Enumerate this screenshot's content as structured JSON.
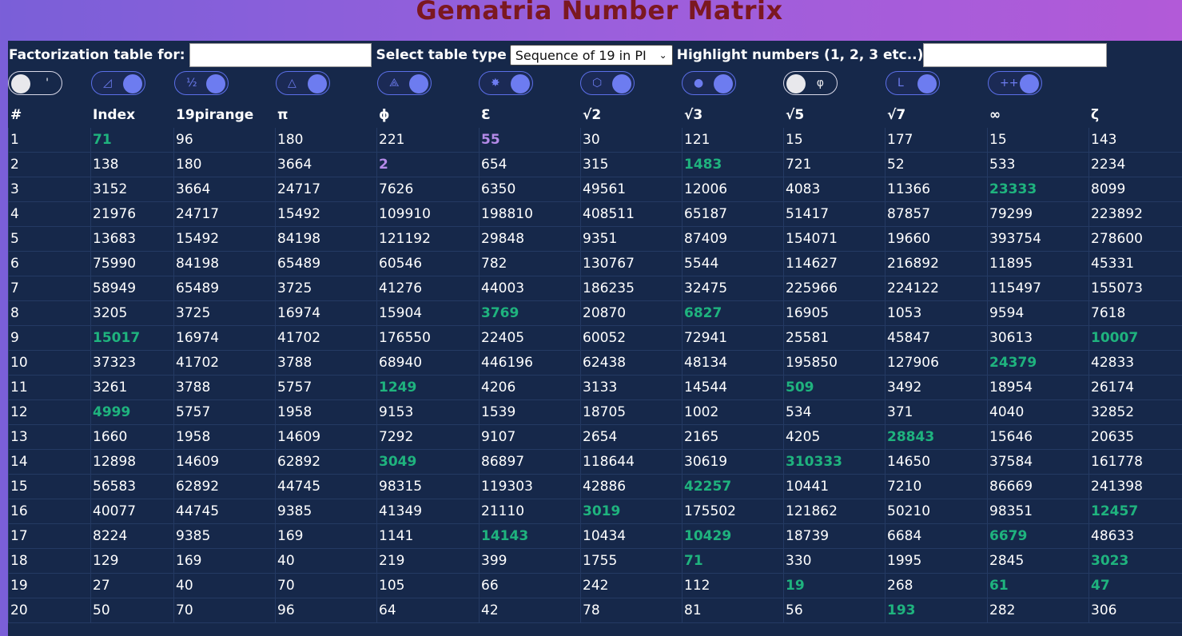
{
  "title": "Gematria Number Matrix",
  "controls": {
    "factor_label": "Factorization table for:",
    "factor_value": "",
    "type_label": "Select table type",
    "type_selected": "Sequence of 19 in PI",
    "highlight_label": "Highlight numbers (1, 2, 3 etc..)",
    "highlight_value": ""
  },
  "toggles": [
    {
      "glyph": "'",
      "state": "off",
      "icon": "apostrophe-icon"
    },
    {
      "glyph": "◿",
      "state": "on",
      "icon": "right-triangle-icon"
    },
    {
      "glyph": "½",
      "state": "on",
      "icon": "half-icon"
    },
    {
      "glyph": "△",
      "state": "on",
      "icon": "triangle-icon"
    },
    {
      "glyph": "⟁",
      "state": "on",
      "icon": "star-triangle-icon"
    },
    {
      "glyph": "✸",
      "state": "on",
      "icon": "star-icon"
    },
    {
      "glyph": "⬡",
      "state": "on",
      "icon": "hexagon-icon"
    },
    {
      "glyph": "●",
      "state": "on",
      "icon": "circle-icon"
    },
    {
      "glyph": "φ",
      "state": "off",
      "icon": "phi-icon"
    },
    {
      "glyph": "L",
      "state": "on",
      "icon": "letter-l-icon"
    },
    {
      "glyph": "+++",
      "state": "on",
      "icon": "plus-icon"
    }
  ],
  "colors": {
    "highlight_green": "#1fb37e",
    "highlight_purple": "#b48ae8"
  },
  "table": {
    "headers": [
      "#",
      "Index",
      "19pirange",
      "π",
      "ϕ",
      "Ɛ",
      "√2",
      "√3",
      "√5",
      "√7",
      "∞",
      "ζ"
    ],
    "rows": [
      [
        "1",
        "71",
        "96",
        "180",
        "221",
        "55",
        "30",
        "121",
        "15",
        "177",
        "15",
        "143"
      ],
      [
        "2",
        "138",
        "180",
        "3664",
        "2",
        "654",
        "315",
        "1483",
        "721",
        "52",
        "533",
        "2234"
      ],
      [
        "3",
        "3152",
        "3664",
        "24717",
        "7626",
        "6350",
        "49561",
        "12006",
        "4083",
        "11366",
        "23333",
        "8099"
      ],
      [
        "4",
        "21976",
        "24717",
        "15492",
        "109910",
        "198810",
        "408511",
        "65187",
        "51417",
        "87857",
        "79299",
        "223892"
      ],
      [
        "5",
        "13683",
        "15492",
        "84198",
        "121192",
        "29848",
        "9351",
        "87409",
        "154071",
        "19660",
        "393754",
        "278600"
      ],
      [
        "6",
        "75990",
        "84198",
        "65489",
        "60546",
        "782",
        "130767",
        "5544",
        "114627",
        "216892",
        "11895",
        "45331"
      ],
      [
        "7",
        "58949",
        "65489",
        "3725",
        "41276",
        "44003",
        "186235",
        "32475",
        "225966",
        "224122",
        "115497",
        "155073"
      ],
      [
        "8",
        "3205",
        "3725",
        "16974",
        "15904",
        "3769",
        "20870",
        "6827",
        "16905",
        "1053",
        "9594",
        "7618"
      ],
      [
        "9",
        "15017",
        "16974",
        "41702",
        "176550",
        "22405",
        "60052",
        "72941",
        "25581",
        "45847",
        "30613",
        "10007"
      ],
      [
        "10",
        "37323",
        "41702",
        "3788",
        "68940",
        "446196",
        "62438",
        "48134",
        "195850",
        "127906",
        "24379",
        "42833"
      ],
      [
        "11",
        "3261",
        "3788",
        "5757",
        "1249",
        "4206",
        "3133",
        "14544",
        "509",
        "3492",
        "18954",
        "26174"
      ],
      [
        "12",
        "4999",
        "5757",
        "1958",
        "9153",
        "1539",
        "18705",
        "1002",
        "534",
        "371",
        "4040",
        "32852"
      ],
      [
        "13",
        "1660",
        "1958",
        "14609",
        "7292",
        "9107",
        "2654",
        "2165",
        "4205",
        "28843",
        "15646",
        "20635"
      ],
      [
        "14",
        "12898",
        "14609",
        "62892",
        "3049",
        "86897",
        "118644",
        "30619",
        "310333",
        "14650",
        "37584",
        "161778"
      ],
      [
        "15",
        "56583",
        "62892",
        "44745",
        "98315",
        "119303",
        "42886",
        "42257",
        "10441",
        "7210",
        "86669",
        "241398"
      ],
      [
        "16",
        "40077",
        "44745",
        "9385",
        "41349",
        "21110",
        "3019",
        "175502",
        "121862",
        "50210",
        "98351",
        "12457"
      ],
      [
        "17",
        "8224",
        "9385",
        "169",
        "1141",
        "14143",
        "10434",
        "10429",
        "18739",
        "6684",
        "6679",
        "48633"
      ],
      [
        "18",
        "129",
        "169",
        "40",
        "219",
        "399",
        "1755",
        "71",
        "330",
        "1995",
        "2845",
        "3023"
      ],
      [
        "19",
        "27",
        "40",
        "70",
        "105",
        "66",
        "242",
        "112",
        "19",
        "268",
        "61",
        "47"
      ],
      [
        "20",
        "50",
        "70",
        "96",
        "64",
        "42",
        "78",
        "81",
        "56",
        "193",
        "282",
        "306"
      ]
    ],
    "highlights": [
      {
        "row": 0,
        "col": 1,
        "color": "green"
      },
      {
        "row": 0,
        "col": 5,
        "color": "purple"
      },
      {
        "row": 1,
        "col": 4,
        "color": "purple"
      },
      {
        "row": 1,
        "col": 7,
        "color": "green"
      },
      {
        "row": 2,
        "col": 10,
        "color": "green"
      },
      {
        "row": 7,
        "col": 5,
        "color": "green"
      },
      {
        "row": 7,
        "col": 7,
        "color": "green"
      },
      {
        "row": 8,
        "col": 1,
        "color": "green"
      },
      {
        "row": 8,
        "col": 11,
        "color": "green"
      },
      {
        "row": 9,
        "col": 10,
        "color": "green"
      },
      {
        "row": 10,
        "col": 4,
        "color": "green"
      },
      {
        "row": 10,
        "col": 8,
        "color": "green"
      },
      {
        "row": 11,
        "col": 1,
        "color": "green"
      },
      {
        "row": 12,
        "col": 9,
        "color": "green"
      },
      {
        "row": 13,
        "col": 4,
        "color": "green"
      },
      {
        "row": 13,
        "col": 8,
        "color": "green"
      },
      {
        "row": 14,
        "col": 7,
        "color": "green"
      },
      {
        "row": 15,
        "col": 6,
        "color": "green"
      },
      {
        "row": 15,
        "col": 11,
        "color": "green"
      },
      {
        "row": 16,
        "col": 5,
        "color": "green"
      },
      {
        "row": 16,
        "col": 7,
        "color": "green"
      },
      {
        "row": 16,
        "col": 10,
        "color": "green"
      },
      {
        "row": 17,
        "col": 7,
        "color": "green"
      },
      {
        "row": 17,
        "col": 11,
        "color": "green"
      },
      {
        "row": 18,
        "col": 8,
        "color": "green"
      },
      {
        "row": 18,
        "col": 10,
        "color": "green"
      },
      {
        "row": 18,
        "col": 11,
        "color": "green"
      },
      {
        "row": 19,
        "col": 9,
        "color": "green"
      }
    ]
  }
}
